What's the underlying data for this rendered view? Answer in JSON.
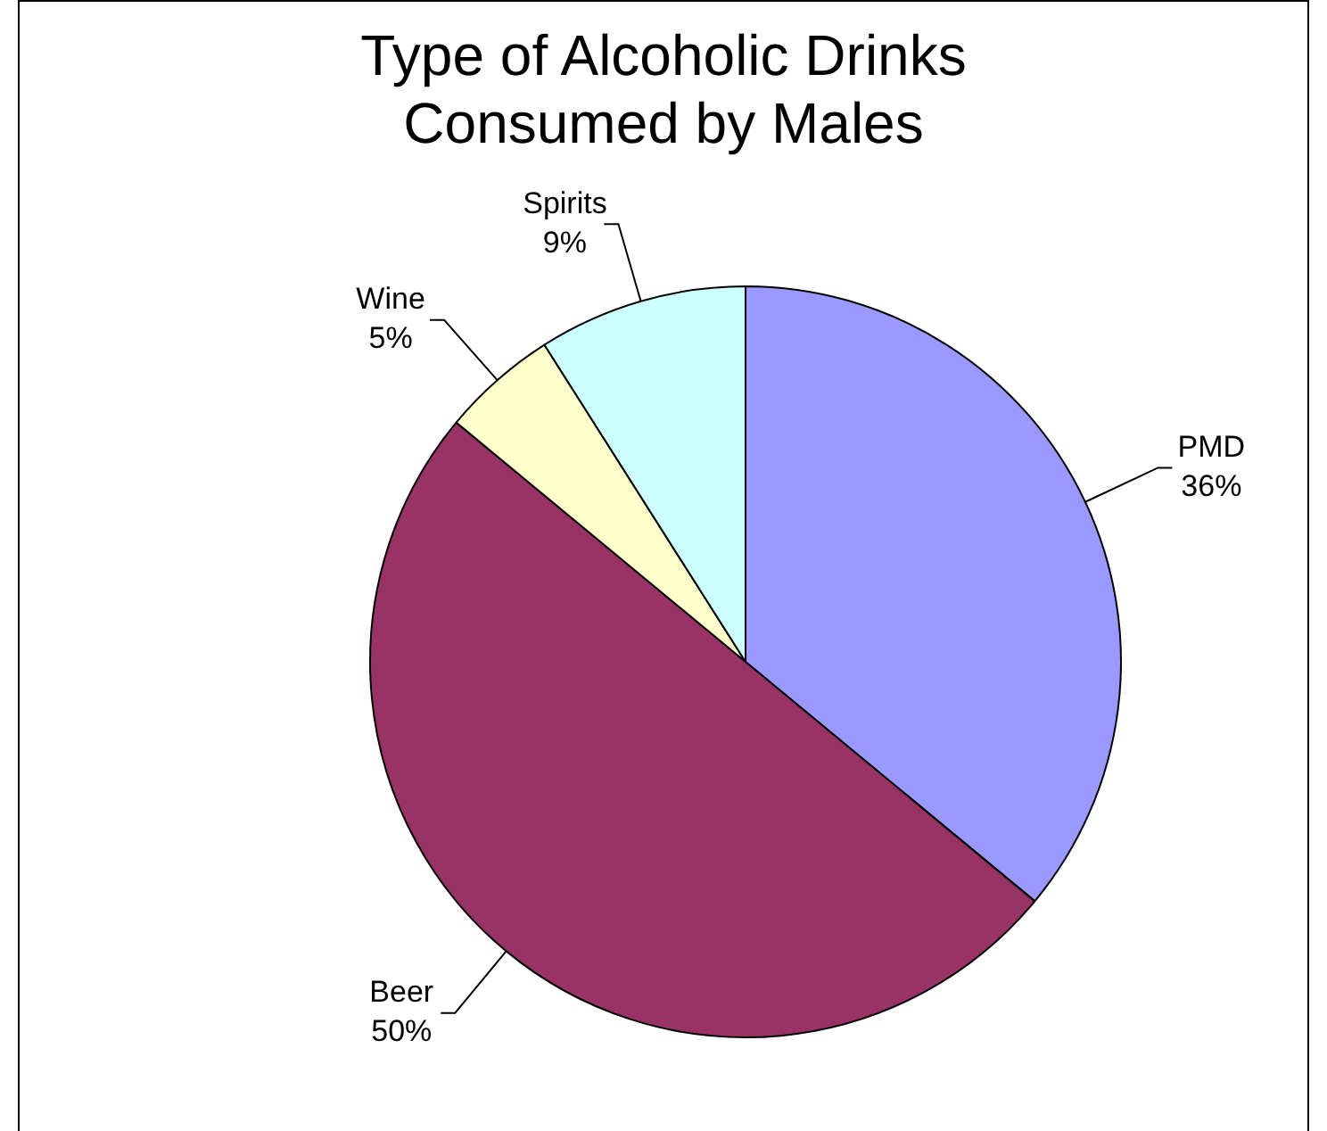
{
  "chart_data": {
    "type": "pie",
    "title": "Type of Alcoholic Drinks Consumed by Males",
    "categories": [
      "PMD",
      "Beer",
      "Wine",
      "Spirits"
    ],
    "values": [
      36,
      50,
      5,
      9
    ],
    "colors": [
      "#9999ff",
      "#993366",
      "#ffffcc",
      "#ccffff"
    ],
    "value_labels": [
      "36%",
      "50%",
      "5%",
      "9%"
    ],
    "legend": false
  }
}
